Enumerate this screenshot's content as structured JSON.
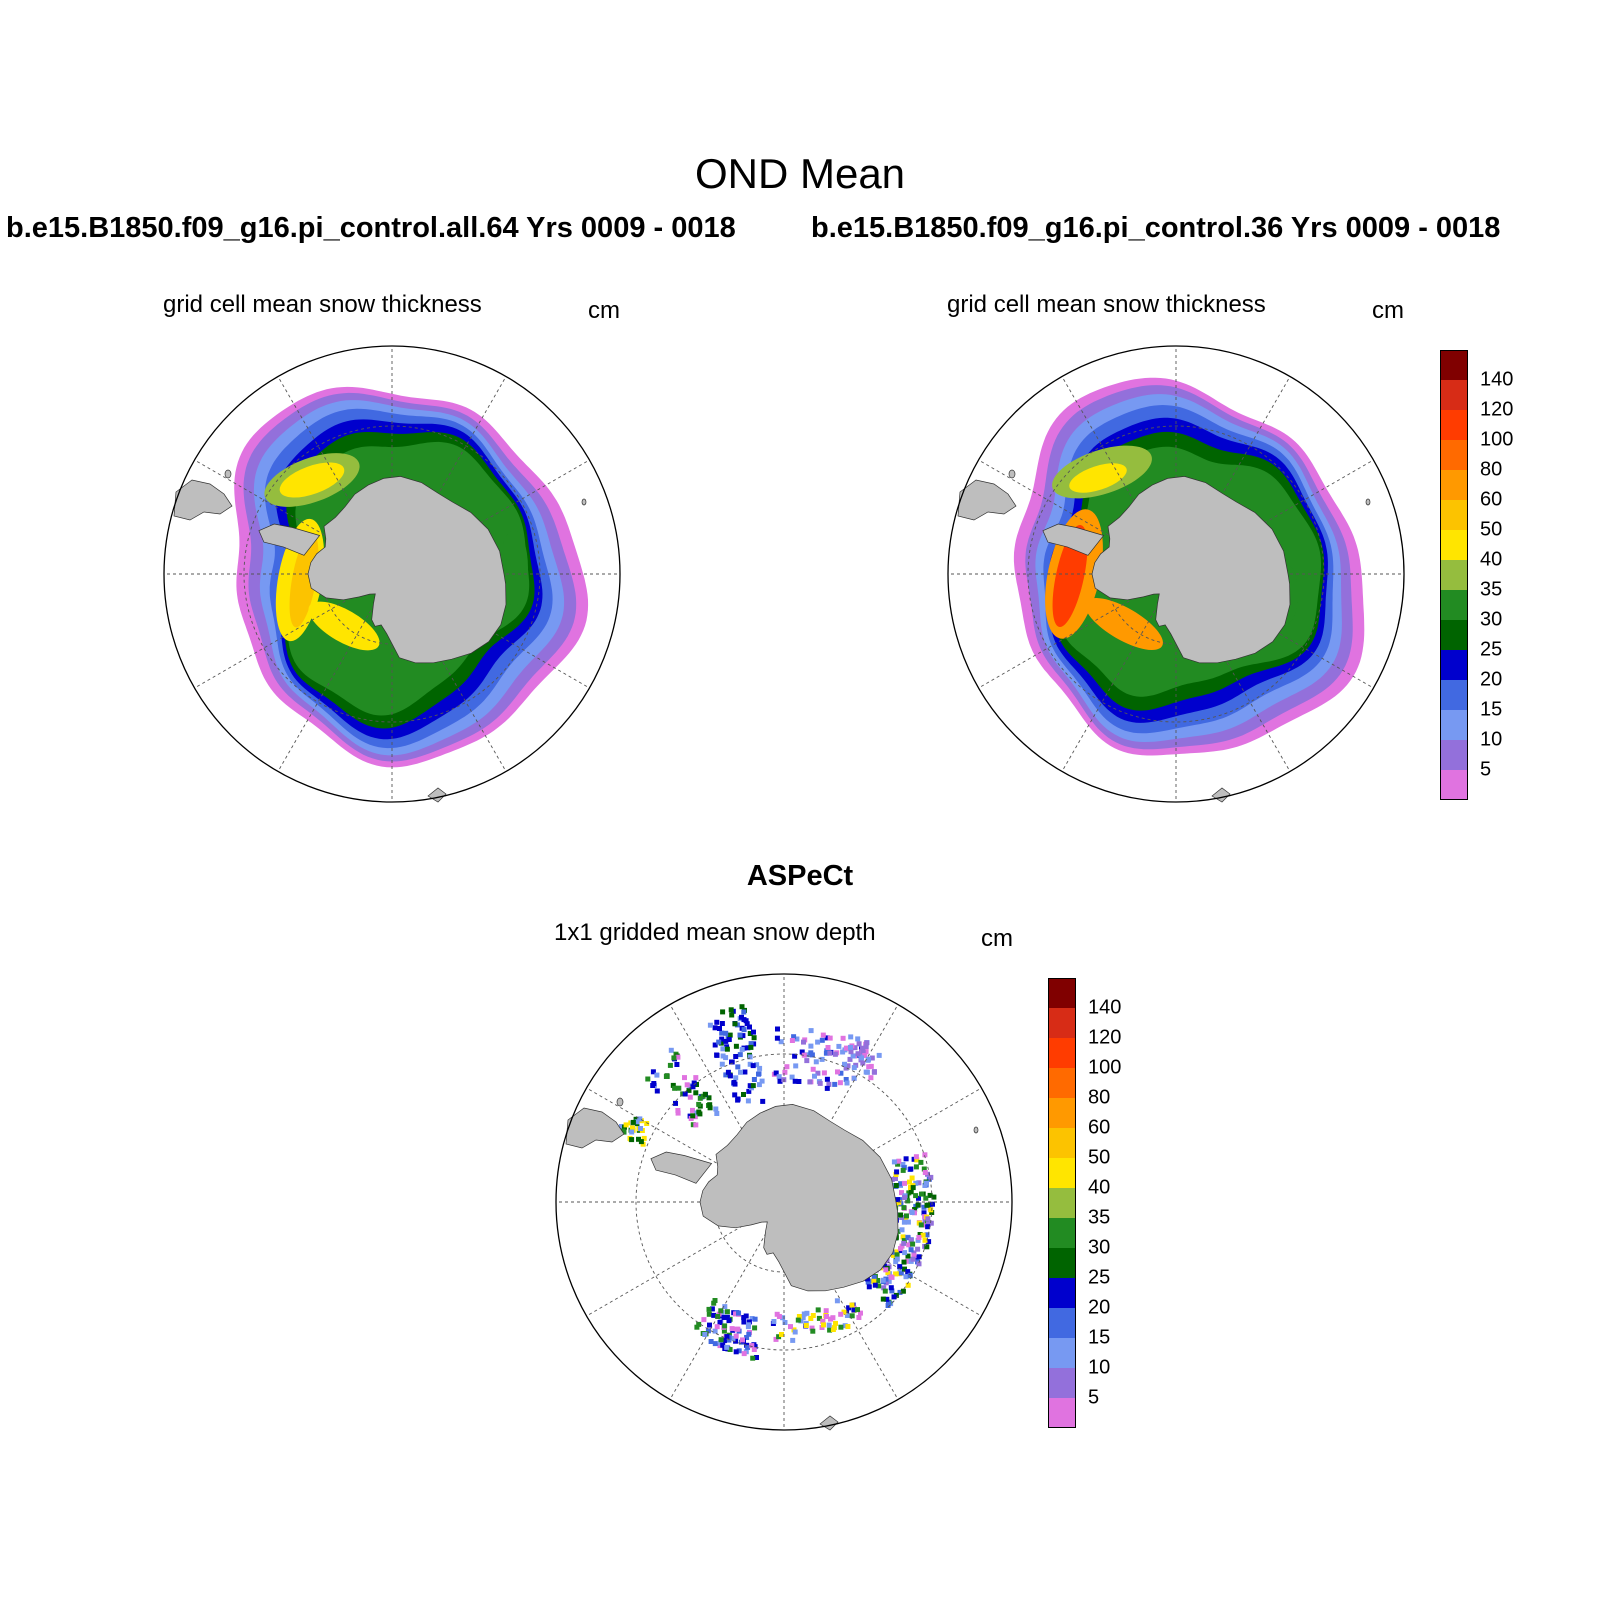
{
  "figure": {
    "title": "OND Mean"
  },
  "panels": [
    {
      "id": "top-left",
      "run_title": "b.e15.B1850.f09_g16.pi_control.all.64  Yrs 0009 - 0018",
      "subtitle": "grid cell mean snow thickness",
      "units": "cm",
      "has_colorbar": false
    },
    {
      "id": "top-right",
      "run_title": "b.e15.B1850.f09_g16.pi_control.36  Yrs 0009 - 0018",
      "subtitle": "grid cell mean snow thickness",
      "units": "cm",
      "has_colorbar": true
    },
    {
      "id": "bottom",
      "section_title": "ASPeCt",
      "subtitle": "1x1 gridded mean snow depth",
      "units": "cm",
      "has_colorbar": true
    }
  ],
  "colorbar": {
    "levels": [
      "140",
      "120",
      "100",
      "80",
      "60",
      "50",
      "40",
      "35",
      "30",
      "25",
      "20",
      "15",
      "10",
      "5"
    ],
    "colors": [
      "#800000",
      "#d72c16",
      "#ff3c00",
      "#ff6a00",
      "#ff9900",
      "#fcc300",
      "#ffe500",
      "#95bd3e",
      "#228b22",
      "#006400",
      "#0000cd",
      "#4169e1",
      "#7799f2",
      "#9370db",
      "#e073e0"
    ]
  },
  "map_colors": {
    "land": "#bebebe",
    "ocean": "#ffffff",
    "grid": "#555555"
  }
}
